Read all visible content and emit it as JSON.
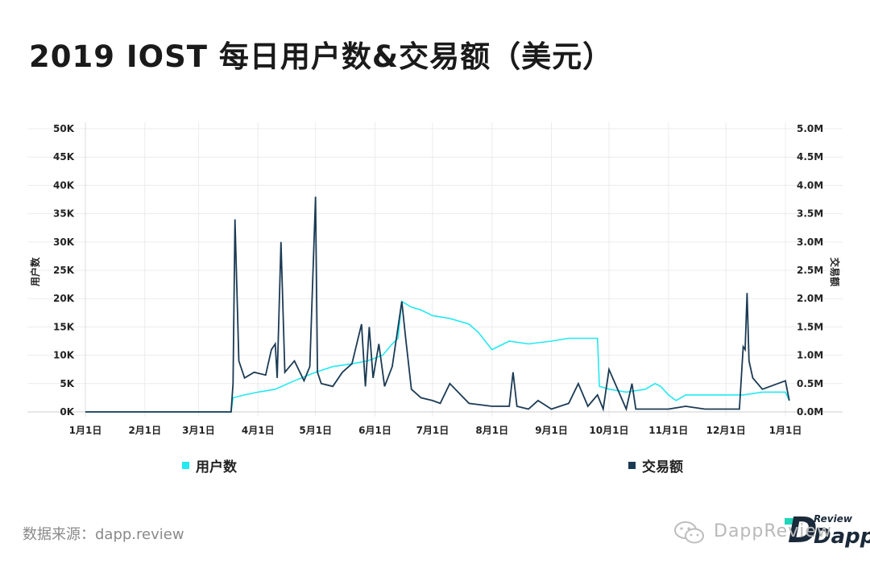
{
  "title": "2019 IOST 每日用户数&交易额（美元）",
  "source_text": "数据来源：dapp.review",
  "watermark_text": "DappReview",
  "logo_review_text": "Review",
  "logo_dapp_text": "Dapp",
  "logo_d_text": "D",
  "colors": {
    "users": "#23e9f2",
    "volume": "#1b3a54",
    "grid": "#ececec",
    "axis_text": "#222222"
  },
  "chart_data": {
    "type": "line",
    "title": "2019 IOST 每日用户数&交易额（美元）",
    "x_tick_labels": [
      "1月1日",
      "2月1日",
      "3月1日",
      "4月1日",
      "5月1日",
      "6月1日",
      "7月1日",
      "8月1日",
      "9月1日",
      "10月1日",
      "11月1日",
      "12月1日",
      "1月1日"
    ],
    "x_tick_dates": [
      "2019-01-01",
      "2019-02-01",
      "2019-03-01",
      "2019-04-01",
      "2019-05-01",
      "2019-06-01",
      "2019-07-01",
      "2019-08-01",
      "2019-09-01",
      "2019-10-01",
      "2019-11-01",
      "2019-12-01",
      "2020-01-01"
    ],
    "ylabel_left": "用户数",
    "ylabel_right": "交易额",
    "ylim_left": [
      0,
      50000
    ],
    "ylim_right": [
      0,
      5000000
    ],
    "y_tick_labels_left": [
      "0K",
      "5K",
      "10K",
      "15K",
      "20K",
      "25K",
      "30K",
      "35K",
      "40K",
      "45K",
      "50K"
    ],
    "y_tick_labels_right": [
      "0.0M",
      "0.5M",
      "1.0M",
      "1.5M",
      "2.0M",
      "2.5M",
      "3.0M",
      "3.5M",
      "4.0M",
      "4.5M",
      "5.0M"
    ],
    "grid": true,
    "legend_position": "bottom",
    "series": [
      {
        "name": "用户数",
        "axis": "left",
        "x": [
          "2019-01-01",
          "2019-03-18",
          "2019-03-19",
          "2019-03-25",
          "2019-04-01",
          "2019-04-10",
          "2019-04-20",
          "2019-05-01",
          "2019-05-10",
          "2019-05-20",
          "2019-05-28",
          "2019-06-05",
          "2019-06-10",
          "2019-06-13",
          "2019-06-15",
          "2019-06-20",
          "2019-06-25",
          "2019-07-01",
          "2019-07-10",
          "2019-07-20",
          "2019-07-25",
          "2019-08-01",
          "2019-08-10",
          "2019-08-20",
          "2019-09-01",
          "2019-09-10",
          "2019-09-20",
          "2019-09-25",
          "2019-09-26",
          "2019-10-01",
          "2019-10-10",
          "2019-10-20",
          "2019-10-25",
          "2019-10-28",
          "2019-11-01",
          "2019-11-05",
          "2019-11-10",
          "2019-11-20",
          "2019-12-01",
          "2019-12-10",
          "2019-12-20",
          "2019-12-28",
          "2020-01-01",
          "2020-01-03"
        ],
        "values": [
          0,
          0,
          2500,
          3000,
          3500,
          4000,
          5500,
          7000,
          8000,
          8500,
          9000,
          10000,
          12000,
          13000,
          19500,
          18500,
          18000,
          17000,
          16500,
          15500,
          14000,
          11000,
          12500,
          12000,
          12500,
          13000,
          13000,
          13000,
          4500,
          4000,
          3500,
          4000,
          5000,
          4500,
          3000,
          2000,
          3000,
          3000,
          3000,
          3000,
          3500,
          3500,
          3500,
          2000
        ]
      },
      {
        "name": "交易额",
        "axis": "right",
        "x": [
          "2019-01-01",
          "2019-03-18",
          "2019-03-19",
          "2019-03-20",
          "2019-03-22",
          "2019-03-25",
          "2019-03-30",
          "2019-04-05",
          "2019-04-08",
          "2019-04-10",
          "2019-04-11",
          "2019-04-13",
          "2019-04-15",
          "2019-04-20",
          "2019-04-25",
          "2019-04-28",
          "2019-05-01",
          "2019-05-02",
          "2019-05-04",
          "2019-05-10",
          "2019-05-15",
          "2019-05-20",
          "2019-05-25",
          "2019-05-27",
          "2019-05-29",
          "2019-05-31",
          "2019-06-03",
          "2019-06-06",
          "2019-06-10",
          "2019-06-15",
          "2019-06-17",
          "2019-06-20",
          "2019-06-25",
          "2019-07-01",
          "2019-07-05",
          "2019-07-10",
          "2019-07-20",
          "2019-08-01",
          "2019-08-10",
          "2019-08-12",
          "2019-08-14",
          "2019-08-20",
          "2019-08-25",
          "2019-09-01",
          "2019-09-10",
          "2019-09-15",
          "2019-09-20",
          "2019-09-25",
          "2019-09-28",
          "2019-10-01",
          "2019-10-10",
          "2019-10-13",
          "2019-10-15",
          "2019-10-20",
          "2019-11-01",
          "2019-11-10",
          "2019-11-20",
          "2019-12-01",
          "2019-12-08",
          "2019-12-10",
          "2019-12-11",
          "2019-12-12",
          "2019-12-13",
          "2019-12-15",
          "2019-12-20",
          "2019-12-28",
          "2020-01-01",
          "2020-01-03"
        ],
        "values": [
          0,
          0,
          500000,
          3400000,
          900000,
          600000,
          700000,
          650000,
          1100000,
          1200000,
          600000,
          3000000,
          700000,
          900000,
          550000,
          800000,
          3800000,
          700000,
          500000,
          450000,
          700000,
          850000,
          1550000,
          450000,
          1500000,
          600000,
          1200000,
          450000,
          800000,
          1950000,
          1300000,
          400000,
          250000,
          200000,
          150000,
          500000,
          150000,
          100000,
          100000,
          700000,
          100000,
          50000,
          200000,
          50000,
          150000,
          500000,
          100000,
          300000,
          50000,
          750000,
          50000,
          500000,
          50000,
          50000,
          50000,
          100000,
          50000,
          50000,
          50000,
          1150000,
          1100000,
          2100000,
          900000,
          600000,
          400000,
          500000,
          550000,
          200000
        ]
      }
    ]
  }
}
